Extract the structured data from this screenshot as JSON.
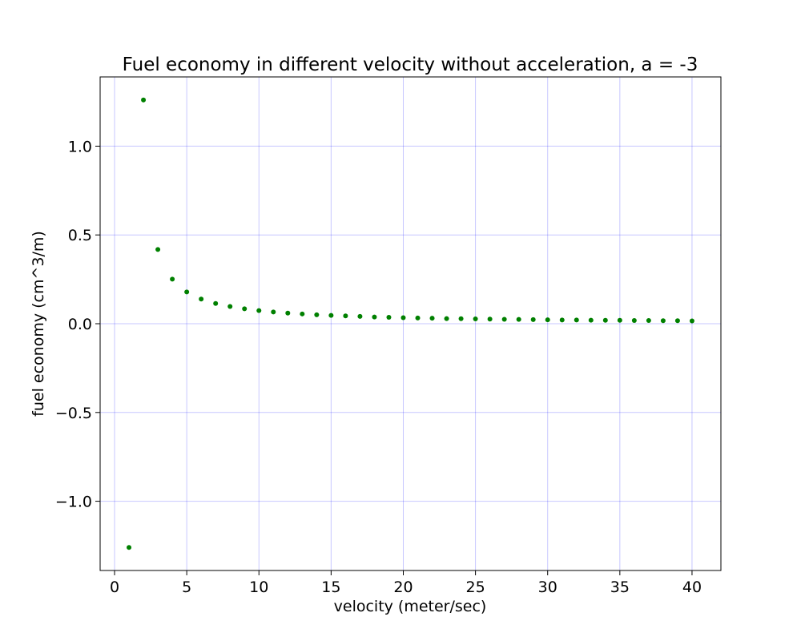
{
  "chart_data": {
    "type": "scatter",
    "title": "Fuel economy in different velocity without acceleration, a = -3",
    "xlabel": "velocity (meter/sec)",
    "ylabel": "fuel economy (cm^3/m)",
    "xlim": [
      -1,
      42
    ],
    "ylim": [
      -1.39,
      1.39
    ],
    "xticks": [
      0,
      5,
      10,
      15,
      20,
      25,
      30,
      35,
      40
    ],
    "yticks": [
      -1.0,
      -0.5,
      0.0,
      0.5,
      1.0
    ],
    "xtick_labels": [
      "0",
      "5",
      "10",
      "15",
      "20",
      "25",
      "30",
      "35",
      "40"
    ],
    "ytick_labels": [
      "−1.0",
      "−0.5",
      "0.0",
      "0.5",
      "1.0"
    ],
    "grid": true,
    "legend": "none",
    "point_color": "#008000",
    "grid_color": "#0000ff",
    "x": [
      1,
      2,
      3,
      4,
      5,
      6,
      7,
      8,
      9,
      10,
      11,
      12,
      13,
      14,
      15,
      16,
      17,
      18,
      19,
      20,
      21,
      22,
      23,
      24,
      25,
      26,
      27,
      28,
      29,
      30,
      31,
      32,
      33,
      34,
      35,
      36,
      37,
      38,
      39,
      40
    ],
    "y": [
      -1.26,
      1.26,
      0.418,
      0.251,
      0.179,
      0.139,
      0.114,
      0.097,
      0.084,
      0.074,
      0.066,
      0.06,
      0.055,
      0.05,
      0.047,
      0.044,
      0.041,
      0.038,
      0.036,
      0.034,
      0.032,
      0.031,
      0.029,
      0.028,
      0.027,
      0.026,
      0.025,
      0.024,
      0.023,
      0.022,
      0.021,
      0.021,
      0.02,
      0.019,
      0.019,
      0.018,
      0.018,
      0.017,
      0.017,
      0.016
    ]
  }
}
